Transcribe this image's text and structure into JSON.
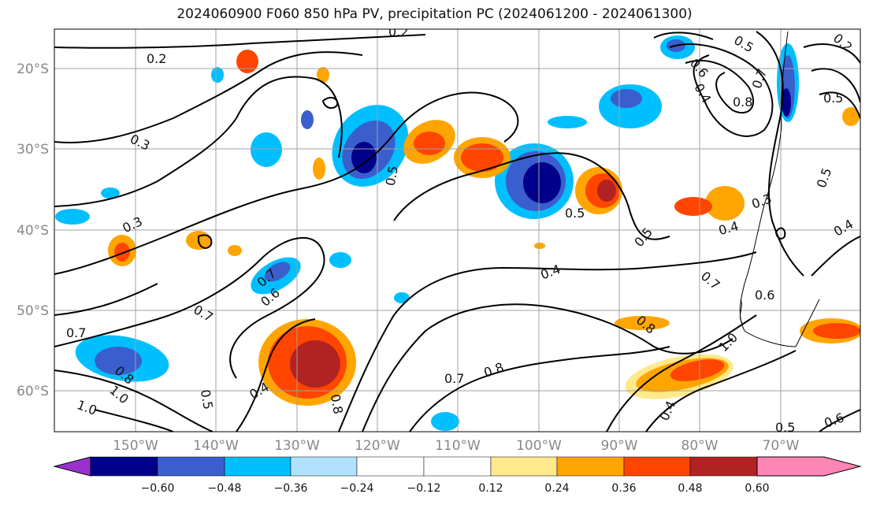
{
  "title": "2024060900 F060 850 hPa PV, precipitation PC (2024061200 - 2024061300)",
  "lat_labels": [
    "20°S",
    "30°S",
    "40°S",
    "50°S",
    "60°S"
  ],
  "lon_labels": [
    "150°W",
    "140°W",
    "130°W",
    "120°W",
    "110°W",
    "100°W",
    "90°W",
    "80°W",
    "70°W"
  ],
  "colorbar": {
    "tick_labels": [
      "−0.60",
      "−0.48",
      "−0.36",
      "−0.24",
      "−0.12",
      "0.12",
      "0.24",
      "0.36",
      "0.48",
      "0.60"
    ],
    "colors": [
      "#9932cc",
      "#00008b",
      "#3a5fcd",
      "#00bfff",
      "#b0e2ff",
      "#ffffff",
      "#ffe98a",
      "#ffa500",
      "#ff4500",
      "#b22222",
      "#ff85b4"
    ]
  },
  "contour_labels": [
    "0.2",
    "0.2",
    "0.3",
    "0.3",
    "0.5",
    "0.5",
    "0.5",
    "0.4",
    "0.4",
    "0.7",
    "0.6",
    "0.7",
    "0.7",
    "0.8",
    "1.0",
    "1.0",
    "0.5",
    "0.4",
    "0.8",
    "0.7",
    "0.8",
    "0.8",
    "0.7",
    "0.6",
    "1.0",
    "0.4",
    "0.5",
    "0.6",
    "0.5",
    "0.8",
    "0.7",
    "0.6",
    "0.4",
    "0.3",
    "0.5",
    "0.2",
    "0.4",
    "0.5"
  ]
}
